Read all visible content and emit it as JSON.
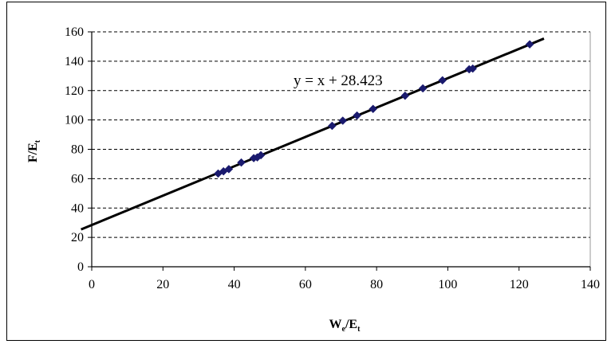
{
  "chart_data": {
    "type": "scatter",
    "xlabel": {
      "main": "W",
      "sub": "e",
      "mid": "/E",
      "sub2": "t"
    },
    "ylabel": {
      "main": "F/E",
      "sub": "t"
    },
    "xlim": [
      0,
      140
    ],
    "ylim": [
      0,
      160
    ],
    "xticks": [
      0,
      20,
      40,
      60,
      80,
      100,
      120,
      140
    ],
    "yticks": [
      0,
      20,
      40,
      60,
      80,
      100,
      120,
      140,
      160
    ],
    "grid": "horizontal-dashed",
    "legend": "none",
    "marker_color": "#1a1a6e",
    "line_color": "#000000",
    "trendline": {
      "slope": 1,
      "intercept": 28.423,
      "x_range": [
        0,
        127
      ],
      "equation": "y = x + 28.423"
    },
    "series": [
      {
        "points": [
          [
            35.5,
            63.5
          ],
          [
            37,
            65
          ],
          [
            38.5,
            66.5
          ],
          [
            42,
            71
          ],
          [
            45.5,
            74
          ],
          [
            46.5,
            74.5
          ],
          [
            47.5,
            76
          ],
          [
            67.5,
            96
          ],
          [
            70.5,
            99.5
          ],
          [
            74.5,
            103
          ],
          [
            79,
            107.5
          ],
          [
            88,
            116.5
          ],
          [
            93,
            121.5
          ],
          [
            98.5,
            127
          ],
          [
            106,
            134.5
          ],
          [
            107,
            135
          ],
          [
            123,
            151.5
          ]
        ]
      }
    ]
  }
}
